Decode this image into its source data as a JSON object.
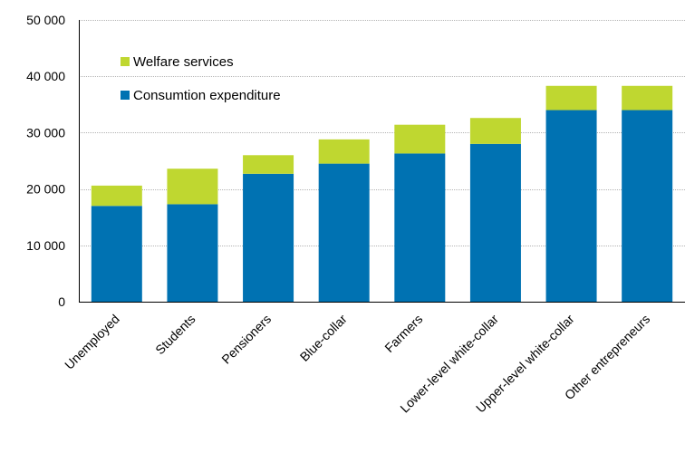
{
  "chart_data": {
    "type": "bar",
    "stacked": true,
    "categories": [
      "Unemployed",
      "Students",
      "Pensioners",
      "Blue-collar",
      "Farmers",
      "Lower-level white-collar",
      "Upper-level white-collar",
      "Other entrepreneurs"
    ],
    "series": [
      {
        "name": "Consumtion expenditure",
        "color": "#0072b2",
        "values": [
          17000,
          17300,
          22700,
          24500,
          26300,
          28000,
          34000,
          34000
        ]
      },
      {
        "name": "Welfare services",
        "color": "#bfd730",
        "values": [
          3600,
          6300,
          3300,
          4300,
          5100,
          4600,
          4300,
          4300
        ]
      }
    ],
    "ylim": [
      0,
      50000
    ],
    "yticks": [
      0,
      10000,
      20000,
      30000,
      40000,
      50000
    ],
    "ytick_labels": [
      "0",
      "10 000",
      "20 000",
      "30 000",
      "40 000",
      "50 000"
    ],
    "grid": true,
    "legend": {
      "placement": "top-left",
      "entries": [
        {
          "label": "Welfare services",
          "color": "#bfd730"
        },
        {
          "label": "Consumtion expenditure",
          "color": "#0072b2"
        }
      ]
    },
    "title": "",
    "xlabel": "",
    "ylabel": ""
  }
}
